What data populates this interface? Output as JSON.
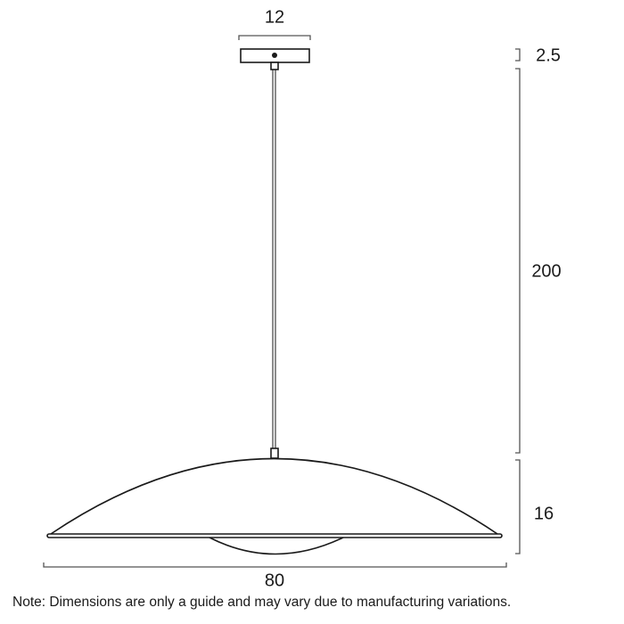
{
  "dimensions": {
    "canopy_width": "12",
    "canopy_height": "2.5",
    "drop_length": "200",
    "shade_height": "16",
    "shade_width": "80"
  },
  "note": "Note: Dimensions are only a guide and may vary due to manufacturing variations.",
  "colors": {
    "line": "#1a1a1a",
    "dimension": "#555555"
  }
}
